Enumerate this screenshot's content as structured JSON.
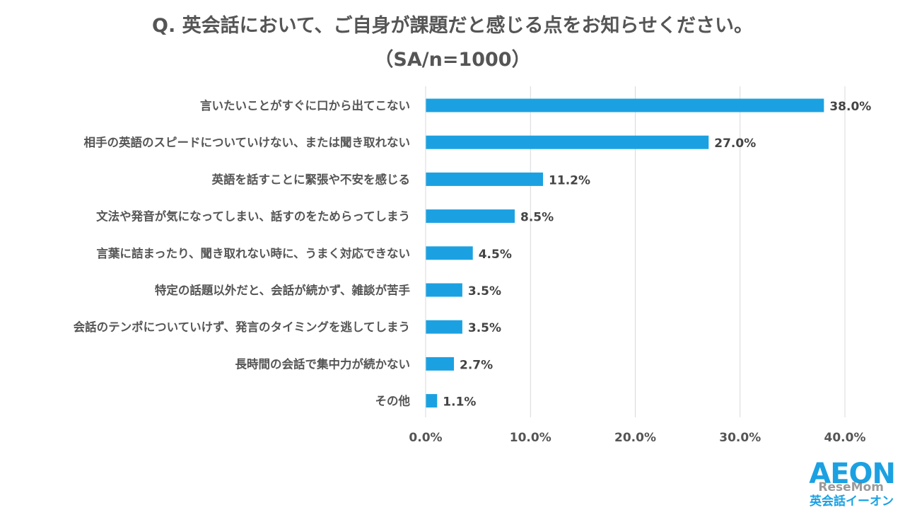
{
  "title_line1": "Q. 英会話において、ご自身が課題だと感じる点をお知らせください。",
  "title_line2": "（SA/n=1000）",
  "logo": {
    "main": "AEON",
    "sub": "英会話イーオン"
  },
  "watermark": "ReseMom",
  "colors": {
    "bar": "#1ba1e2",
    "text": "#555555",
    "grid": "#d9d9d9"
  },
  "chart_data": {
    "type": "bar",
    "orientation": "horizontal",
    "title": "Q. 英会話において、ご自身が課題だと感じる点をお知らせください。（SA/n=1000）",
    "categories": [
      "言いたいことがすぐに口から出てこない",
      "相手の英語のスピードについていけない、または聞き取れない",
      "英語を話すことに緊張や不安を感じる",
      "文法や発音が気になってしまい、話すのをためらってしまう",
      "言葉に詰まったり、聞き取れない時に、うまく対応できない",
      "特定の話題以外だと、会話が続かず、雑談が苦手",
      "会話のテンポについていけず、発言のタイミングを逃してしまう",
      "長時間の会話で集中力が続かない",
      "その他"
    ],
    "values": [
      38.0,
      27.0,
      11.2,
      8.5,
      4.5,
      3.5,
      3.5,
      2.7,
      1.1
    ],
    "value_labels": [
      "38.0%",
      "27.0%",
      "11.2%",
      "8.5%",
      "4.5%",
      "3.5%",
      "3.5%",
      "2.7%",
      "1.1%"
    ],
    "xlim": [
      0,
      40
    ],
    "xticks": [
      0,
      10,
      20,
      30,
      40
    ],
    "xtick_labels": [
      "0.0%",
      "10.0%",
      "20.0%",
      "30.0%",
      "40.0%"
    ],
    "grid": true,
    "legend": false
  }
}
